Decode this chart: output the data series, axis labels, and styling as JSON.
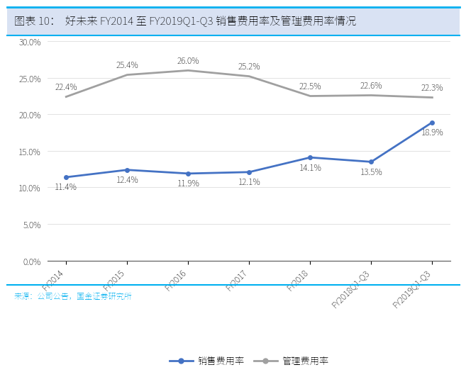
{
  "title": "图表 10：  好未来 FY2014 至 FY2019Q1-Q3 销售费用率及管理费用率情况",
  "categories": [
    "FY2014",
    "FY2015",
    "FY2016",
    "FY2017",
    "FY2018",
    "FY2018Q1-Q3",
    "FY2019Q1-Q3"
  ],
  "sales_rate": [
    11.4,
    12.4,
    11.9,
    12.1,
    14.1,
    13.5,
    18.9
  ],
  "mgmt_rate": [
    22.4,
    25.4,
    26.0,
    25.2,
    22.5,
    22.6,
    22.3
  ],
  "sales_color": "#4472C4",
  "mgmt_color": "#A0A0A0",
  "sales_label": "销售费用率",
  "mgmt_label": "管理费用率",
  "ylim": [
    0,
    30
  ],
  "yticks": [
    0.0,
    5.0,
    10.0,
    15.0,
    20.0,
    25.0,
    30.0
  ],
  "ytick_labels": [
    "0.0%",
    "5.0%",
    "10.0%",
    "15.0%",
    "20.0%",
    "25.0%",
    "30.0%"
  ],
  "title_bg_color": "#D9E2F3",
  "title_fontsize": 11,
  "source_text": "来源：公司公告，国金证券研究所",
  "source_color": "#00B0F0",
  "border_color": "#00B0F0",
  "source_fontsize": 8
}
